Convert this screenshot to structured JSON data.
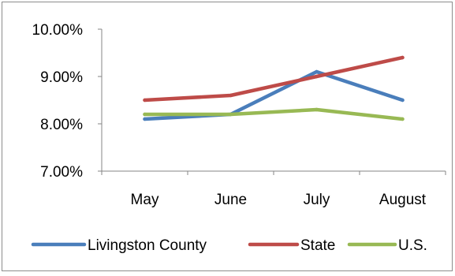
{
  "chart_data": {
    "type": "line",
    "categories": [
      "May",
      "June",
      "July",
      "August"
    ],
    "y_ticks": [
      "7.00%",
      "8.00%",
      "9.00%",
      "10.00%"
    ],
    "ylim": [
      7.0,
      10.0
    ],
    "y_unit": "%",
    "grid": false,
    "legend_position": "bottom",
    "series": [
      {
        "name": "Livingston County",
        "color": "#4a7ebb",
        "values": [
          8.1,
          8.2,
          9.1,
          8.5
        ]
      },
      {
        "name": "State",
        "color": "#be4b48",
        "values": [
          8.5,
          8.6,
          9.0,
          9.4
        ]
      },
      {
        "name": "U.S.",
        "color": "#98b954",
        "values": [
          8.2,
          8.2,
          8.3,
          8.1
        ]
      }
    ]
  }
}
